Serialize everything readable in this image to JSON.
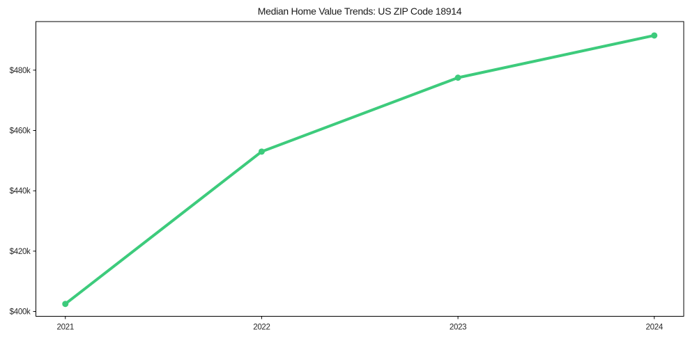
{
  "chart_data": {
    "type": "line",
    "title": "Median Home Value Trends: US ZIP Code 18914",
    "x": [
      2021,
      2022,
      2023,
      2024
    ],
    "x_tick_labels": [
      "2021",
      "2022",
      "2023",
      "2024"
    ],
    "values": [
      402500,
      453000,
      477500,
      491500
    ],
    "y_ticks": [
      {
        "value": 400000,
        "label": "$400k"
      },
      {
        "value": 420000,
        "label": "$420k"
      },
      {
        "value": 440000,
        "label": "$440k"
      },
      {
        "value": 460000,
        "label": "$460k"
      },
      {
        "value": 480000,
        "label": "$480k"
      }
    ],
    "xlim": [
      2020.85,
      2024.15
    ],
    "ylim": [
      398400,
      496100
    ],
    "xlabel": "",
    "ylabel": "",
    "grid": false,
    "legend": "none",
    "marker": "circle",
    "line_color": "#3dcb7c",
    "background_color": "#ffffff",
    "spine_color": "#000000",
    "text_color": "#262626"
  }
}
